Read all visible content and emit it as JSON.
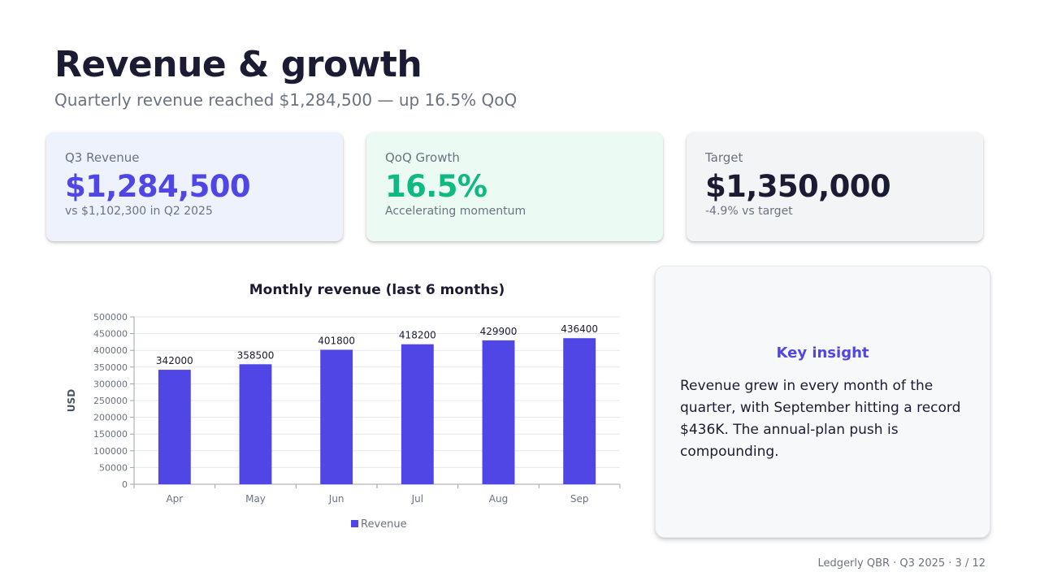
{
  "header": {
    "title": "Revenue & growth",
    "subtitle": "Quarterly revenue reached $1,284,500 — up 16.5% QoQ"
  },
  "kpis": [
    {
      "label": "Q3 Revenue",
      "value": "$1,284,500",
      "note": "vs $1,102,300 in Q2 2025",
      "color": "#4f46e5",
      "background": "#eef2fd"
    },
    {
      "label": "QoQ Growth",
      "value": "16.5%",
      "note": "Accelerating momentum",
      "color": "#10b981",
      "background": "#ebfaf3"
    },
    {
      "label": "Target",
      "value": "$1,350,000",
      "note": "-4.9% vs target",
      "color": "#1b1b33",
      "background": "#f3f4f6"
    }
  ],
  "chart_data": {
    "type": "bar",
    "title": "Monthly revenue (last 6 months)",
    "xlabel": "",
    "ylabel": "USD",
    "categories": [
      "Apr",
      "May",
      "Jun",
      "Jul",
      "Aug",
      "Sep"
    ],
    "series": [
      {
        "name": "Revenue",
        "values": [
          342000,
          358500,
          401800,
          418200,
          429900,
          436400
        ],
        "color": "#4f46e5"
      }
    ],
    "ylim": [
      0,
      500000
    ],
    "yticks": [
      0,
      50000,
      100000,
      150000,
      200000,
      250000,
      300000,
      350000,
      400000,
      450000,
      500000
    ],
    "data_labels": true,
    "grid": true,
    "legend_position": "bottom"
  },
  "insight": {
    "title": "Key insight",
    "body": "Revenue grew in every month of the quarter, with September hitting a record $436K. The annual-plan push is compounding."
  },
  "footer": {
    "text": "Ledgerly QBR · Q3 2025 · 3 / 12"
  }
}
